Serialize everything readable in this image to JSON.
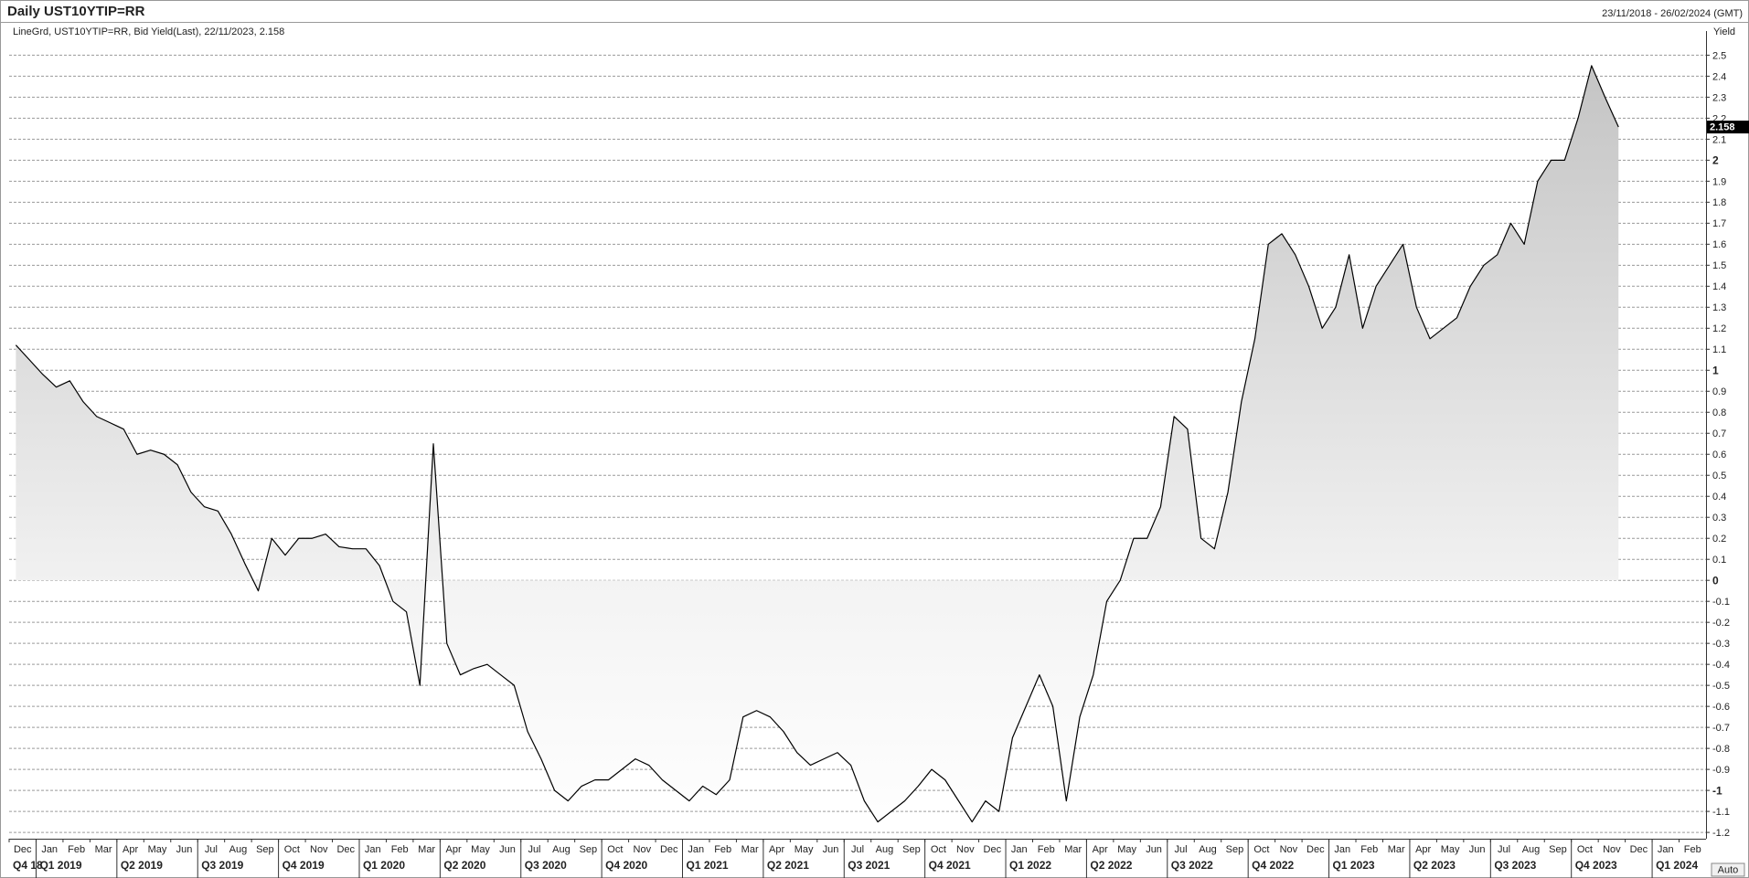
{
  "header": {
    "title": "Daily UST10YTIP=RR",
    "date_range": "23/11/2018 - 26/02/2024 (GMT)",
    "legend": "LineGrd, UST10YTIP=RR, Bid Yield(Last), 22/11/2023, 2.158",
    "auto_button": "Auto"
  },
  "chart_data": {
    "type": "line",
    "y_label": "Yield",
    "yaxis_position": "right",
    "grid": true,
    "color": "#000000",
    "categories": [
      "Dec",
      null,
      "Jan",
      null,
      "Feb",
      null,
      "Mar",
      null,
      "Apr",
      null,
      "May",
      null,
      "Jun",
      null,
      "Jul",
      null,
      "Aug",
      null,
      "Sep",
      null,
      "Oct",
      null,
      "Nov",
      null,
      "Dec",
      null,
      "Jan",
      null,
      "Feb",
      null,
      "Mar",
      null,
      "Apr",
      null,
      "May",
      null,
      "Jun",
      null,
      "Jul",
      null,
      "Aug",
      null,
      "Sep",
      null,
      "Oct",
      null,
      "Nov",
      null,
      "Dec",
      null,
      "Jan",
      null,
      "Feb",
      null,
      "Mar",
      null,
      "Apr",
      null,
      "May",
      null,
      "Jun",
      null,
      "Jul",
      null,
      "Aug",
      null,
      "Sep",
      null,
      "Oct",
      null,
      "Nov",
      null,
      "Dec",
      null,
      "Jan",
      null,
      "Feb",
      null,
      "Mar",
      null,
      "Apr",
      null,
      "May",
      null,
      "Jun",
      null,
      "Jul",
      null,
      "Aug",
      null,
      "Sep",
      null,
      "Oct",
      null,
      "Nov",
      null,
      "Dec",
      null,
      "Jan",
      null,
      "Feb",
      null,
      "Mar",
      null,
      "Apr",
      null,
      "May",
      null,
      "Jun",
      null,
      "Jul",
      null,
      "Aug",
      null,
      "Sep",
      null,
      "Oct",
      null,
      "Nov",
      null,
      "Dec",
      null,
      "Jan",
      null,
      "Feb",
      null
    ],
    "values": [
      1.12,
      1.05,
      0.98,
      0.92,
      0.95,
      0.85,
      0.78,
      0.75,
      0.72,
      0.6,
      0.62,
      0.6,
      0.55,
      0.42,
      0.35,
      0.33,
      0.22,
      0.08,
      -0.05,
      0.2,
      0.12,
      0.2,
      0.2,
      0.22,
      0.16,
      0.15,
      0.15,
      0.07,
      -0.1,
      -0.15,
      -0.5,
      0.65,
      -0.3,
      -0.45,
      -0.42,
      -0.4,
      -0.45,
      -0.5,
      -0.72,
      -0.85,
      -1.0,
      -1.05,
      -0.98,
      -0.95,
      -0.95,
      -0.9,
      -0.85,
      -0.88,
      -0.95,
      -1.0,
      -1.05,
      -0.98,
      -1.02,
      -0.95,
      -0.65,
      -0.62,
      -0.65,
      -0.72,
      -0.82,
      -0.88,
      -0.85,
      -0.82,
      -0.88,
      -1.05,
      -1.15,
      -1.1,
      -1.05,
      -0.98,
      -0.9,
      -0.95,
      -1.05,
      -1.15,
      -1.05,
      -1.1,
      -0.75,
      -0.6,
      -0.45,
      -0.6,
      -1.05,
      -0.65,
      -0.45,
      -0.1,
      0.0,
      0.2,
      0.2,
      0.35,
      0.78,
      0.72,
      0.2,
      0.15,
      0.42,
      0.85,
      1.15,
      1.6,
      1.65,
      1.55,
      1.4,
      1.2,
      1.3,
      1.55,
      1.2,
      1.4,
      1.5,
      1.6,
      1.3,
      1.15,
      1.2,
      1.25,
      1.4,
      1.5,
      1.55,
      1.7,
      1.6,
      1.9,
      2.0,
      2.0,
      2.2,
      2.45,
      2.3,
      2.158,
      null,
      null,
      null,
      null,
      null,
      null
    ],
    "quarters": [
      "Q4 18",
      "Q1 2019",
      "Q2 2019",
      "Q3 2019",
      "Q4 2019",
      "Q1 2020",
      "Q2 2020",
      "Q3 2020",
      "Q4 2020",
      "Q1 2021",
      "Q2 2021",
      "Q3 2021",
      "Q4 2021",
      "Q1 2022",
      "Q2 2022",
      "Q3 2022",
      "Q4 2022",
      "Q1 2023",
      "Q2 2023",
      "Q3 2023",
      "Q4 2023",
      "Q1 2024"
    ],
    "ylim": [
      -1.23,
      2.58
    ],
    "yticks": [
      -1.2,
      -1.1,
      -1,
      -0.9,
      -0.8,
      -0.7,
      -0.6,
      -0.5,
      -0.4,
      -0.3,
      -0.2,
      -0.1,
      0,
      0.1,
      0.2,
      0.3,
      0.4,
      0.5,
      0.6,
      0.7,
      0.8,
      0.9,
      1,
      1.1,
      1.2,
      1.3,
      1.4,
      1.5,
      1.6,
      1.7,
      1.8,
      1.9,
      2,
      2.1,
      2.2,
      2.3,
      2.4,
      2.5
    ]
  }
}
